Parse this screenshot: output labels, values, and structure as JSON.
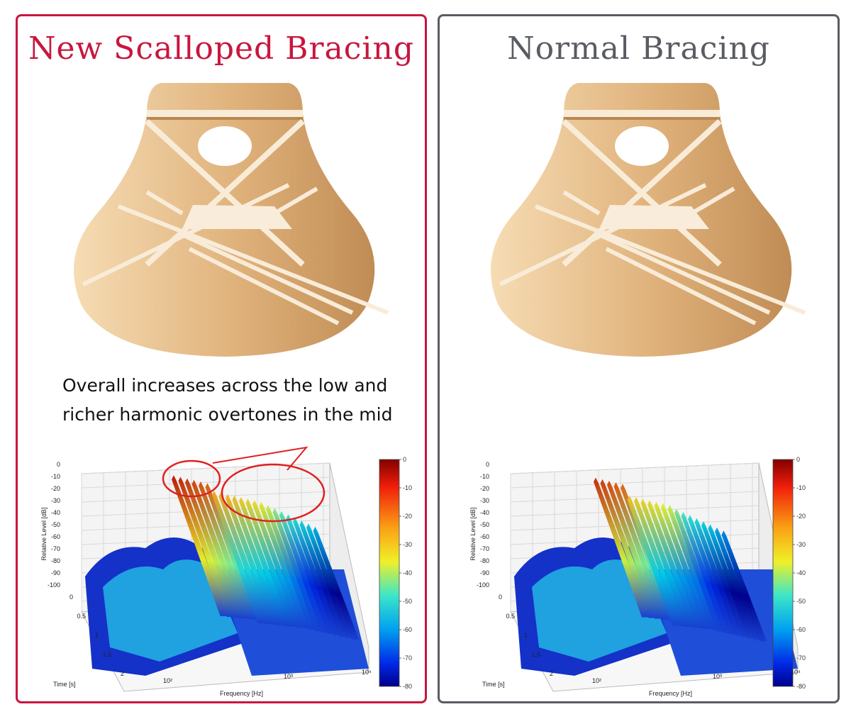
{
  "panels": {
    "left": {
      "title": "New Scalloped Bracing",
      "border_color": "#c8163e",
      "annotation_line1": "Overall increases across the low and",
      "annotation_line2": "richer harmonic overtones in the mid"
    },
    "right": {
      "title": "Normal Bracing",
      "border_color": "#5a5c63"
    }
  },
  "plot": {
    "x_label": "Frequency [Hz]",
    "y_label": "Time [s]",
    "z_label": "Relative Level [dB]",
    "x_ticks": [
      "10²",
      "10³",
      "10⁴"
    ],
    "y_ticks": [
      "0",
      "0.5",
      "1",
      "1.5",
      "2"
    ],
    "z_ticks": [
      "0",
      "-10",
      "-20",
      "-30",
      "-40",
      "-50",
      "-60",
      "-70",
      "-80",
      "-90",
      "-100"
    ],
    "colorbar_ticks_left": [
      "0",
      "-10",
      "-20",
      "-30",
      "-40",
      "-50",
      "-60",
      "-70",
      "-80"
    ],
    "colorbar_ticks_right": [
      "0",
      "-10",
      "-20",
      "-30",
      "-40",
      "-50",
      "-60",
      "-70",
      "-80"
    ]
  },
  "colors": {
    "wood_light": "#f3d4a8",
    "wood_dark": "#c89a63",
    "highlight_red": "#e02020"
  }
}
